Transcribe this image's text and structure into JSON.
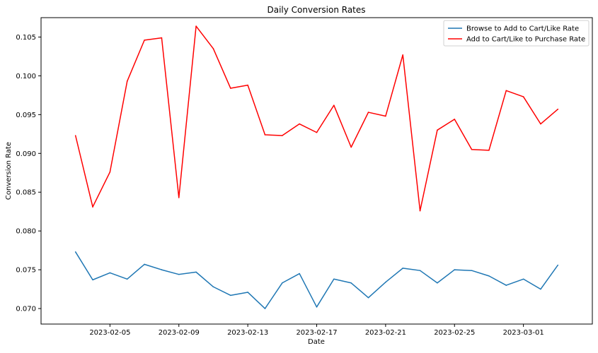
{
  "chart_data": {
    "type": "line",
    "title": "Daily Conversion Rates",
    "xlabel": "Date",
    "ylabel": "Conversion Rate",
    "grid": false,
    "legend_position": "top-right",
    "x_start": "2023-02-03",
    "x_end": "2023-03-03",
    "x_range": [
      "2023-02-01",
      "2023-03-05"
    ],
    "ylim": [
      0.068,
      0.1075
    ],
    "x_ticks": [
      "2023-02-05",
      "2023-02-09",
      "2023-02-13",
      "2023-02-17",
      "2023-02-21",
      "2023-02-25",
      "2023-03-01"
    ],
    "y_ticks": [
      "0.070",
      "0.075",
      "0.080",
      "0.085",
      "0.090",
      "0.095",
      "0.100",
      "0.105"
    ],
    "series": [
      {
        "name": "Browse to Add to Cart/Like Rate",
        "color": "#1f77b4",
        "values": [
          0.0773,
          0.0737,
          0.0746,
          0.0738,
          0.0757,
          0.075,
          0.0744,
          0.0747,
          0.0728,
          0.0717,
          0.0721,
          0.07,
          0.0733,
          0.0745,
          0.0702,
          0.0738,
          0.0733,
          0.0714,
          0.0734,
          0.0752,
          0.0749,
          0.0733,
          0.075,
          0.0749,
          0.0742,
          0.073,
          0.0738,
          0.0725,
          0.0756
        ]
      },
      {
        "name": "Add to Cart/Like to Purchase Rate",
        "color": "#ff0000",
        "values": [
          0.0923,
          0.0831,
          0.0876,
          0.0993,
          0.1046,
          0.1049,
          0.0843,
          0.1064,
          0.1035,
          0.0984,
          0.0988,
          0.0924,
          0.0923,
          0.0938,
          0.0927,
          0.0962,
          0.0908,
          0.0953,
          0.0948,
          0.1027,
          0.0826,
          0.093,
          0.0944,
          0.0905,
          0.0904,
          0.0981,
          0.0973,
          0.0938,
          0.0957
        ]
      }
    ]
  }
}
